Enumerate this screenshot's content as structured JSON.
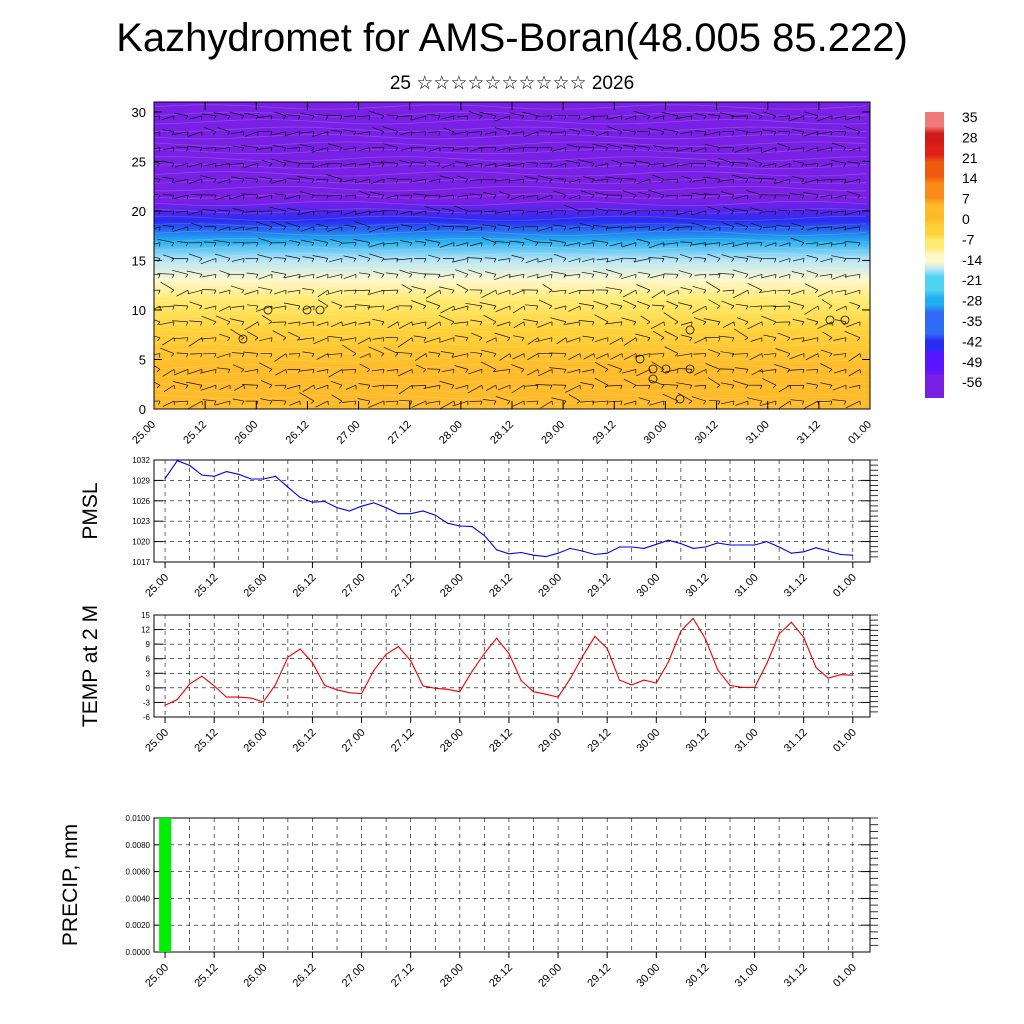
{
  "title": "Kazhydromet for AMS-Boran(48.005 85.222)",
  "subtitle": "25 ☆☆☆☆☆☆☆☆☆☆ 2026",
  "time_ticks": [
    "25.00",
    "25.12",
    "26.00",
    "26.12",
    "27.00",
    "27.12",
    "28.00",
    "28.12",
    "29.00",
    "29.12",
    "30.00",
    "30.12",
    "31.00",
    "31.12",
    "01.00"
  ],
  "colors": {
    "pmsl_line": "#0000ee",
    "temp_line": "#ee0000",
    "precip_bar": "#00ee00",
    "frame": "#000000"
  },
  "chart_data": [
    {
      "type": "heatmap",
      "name_hint": "cross-section",
      "y_ticks": [
        0,
        5,
        10,
        15,
        20,
        25,
        30
      ],
      "ylim": [
        0,
        31
      ],
      "colorbar": {
        "labels": [
          35,
          28,
          21,
          14,
          7,
          0,
          -7,
          -14,
          -21,
          -28,
          -35,
          -42,
          -49,
          -56
        ],
        "range": [
          -60,
          38
        ]
      },
      "profile": [
        {
          "level": 0,
          "value": 4
        },
        {
          "level": 4,
          "value": 1
        },
        {
          "level": 8,
          "value": -2
        },
        {
          "level": 11,
          "value": -6
        },
        {
          "level": 13,
          "value": -10
        },
        {
          "level": 15,
          "value": -17
        },
        {
          "level": 17,
          "value": -27
        },
        {
          "level": 19,
          "value": -40
        },
        {
          "level": 21,
          "value": -52
        },
        {
          "level": 22,
          "value": -57
        },
        {
          "level": 24,
          "value": -55
        },
        {
          "level": 27,
          "value": -56
        },
        {
          "level": 31,
          "value": -55
        }
      ]
    },
    {
      "type": "line",
      "ylabel": "PMSL",
      "y_ticks": [
        1017,
        1020,
        1023,
        1026,
        1029,
        1032
      ],
      "ylim": [
        1017,
        1032
      ],
      "x": [
        0,
        3,
        6,
        9,
        12,
        15,
        18,
        21,
        24,
        27,
        30,
        33,
        36,
        39,
        42,
        45,
        48,
        51,
        54,
        57,
        60,
        63,
        66,
        69,
        72,
        75,
        78,
        81,
        84,
        87,
        90,
        93,
        96,
        99,
        102,
        105,
        108,
        111,
        114,
        117,
        120,
        123,
        126,
        129,
        132,
        135,
        138,
        141,
        144,
        147,
        150,
        153,
        156,
        159,
        162,
        165,
        168
      ],
      "values": [
        1029.3,
        1031.9,
        1031.2,
        1029.8,
        1029.6,
        1030.3,
        1029.9,
        1029.2,
        1029.2,
        1029.6,
        1028.0,
        1026.5,
        1025.8,
        1025.9,
        1025.0,
        1024.5,
        1025.2,
        1025.7,
        1025.0,
        1024.1,
        1024.1,
        1024.5,
        1023.9,
        1022.7,
        1022.3,
        1022.2,
        1020.9,
        1018.8,
        1018.2,
        1018.4,
        1018.0,
        1017.8,
        1018.3,
        1019.0,
        1018.6,
        1018.1,
        1018.3,
        1019.2,
        1019.2,
        1019.0,
        1019.6,
        1020.2,
        1019.7,
        1019.0,
        1019.2,
        1019.8,
        1019.5,
        1019.5,
        1019.5,
        1020.0,
        1019.2,
        1018.3,
        1018.5,
        1019.1,
        1018.6,
        1018.1,
        1018.0
      ]
    },
    {
      "type": "line",
      "ylabel": "TEMP at 2 M",
      "y_ticks": [
        -6,
        -3,
        0,
        3,
        6,
        9,
        12,
        15
      ],
      "ylim": [
        -6,
        15
      ],
      "x": [
        0,
        3,
        6,
        9,
        12,
        15,
        18,
        21,
        24,
        27,
        30,
        33,
        36,
        39,
        42,
        45,
        48,
        51,
        54,
        57,
        60,
        63,
        66,
        69,
        72,
        75,
        78,
        81,
        84,
        87,
        90,
        93,
        96,
        99,
        102,
        105,
        108,
        111,
        114,
        117,
        120,
        123,
        126,
        129,
        132,
        135,
        138,
        141,
        144,
        147,
        150,
        153,
        156,
        159,
        162,
        165,
        168
      ],
      "values": [
        -3.6,
        -2.4,
        0.8,
        2.4,
        0.4,
        -1.9,
        -1.9,
        -2.1,
        -2.9,
        0.7,
        6.3,
        8.0,
        5.2,
        0.5,
        -0.4,
        -1.0,
        -1.2,
        3.6,
        6.9,
        8.5,
        5.6,
        0.4,
        -0.1,
        -0.3,
        -0.8,
        3.4,
        7.1,
        10.2,
        7.1,
        1.5,
        -0.8,
        -1.3,
        -1.9,
        1.9,
        6.5,
        10.6,
        8.1,
        1.6,
        0.6,
        1.6,
        1.0,
        5.4,
        11.7,
        14.3,
        10.1,
        3.7,
        0.5,
        0.1,
        0.1,
        5.0,
        11.1,
        13.5,
        10.4,
        4.2,
        2.0,
        2.7,
        2.6
      ]
    },
    {
      "type": "bar",
      "ylabel": "PRECIP, mm",
      "y_ticks": [
        "0.0000",
        "0.0020",
        "0.0040",
        "0.0060",
        "0.0080",
        "0.0100"
      ],
      "ylim": [
        0,
        0.01
      ],
      "bars": [
        {
          "x": 0,
          "value": 0.01
        }
      ]
    }
  ]
}
